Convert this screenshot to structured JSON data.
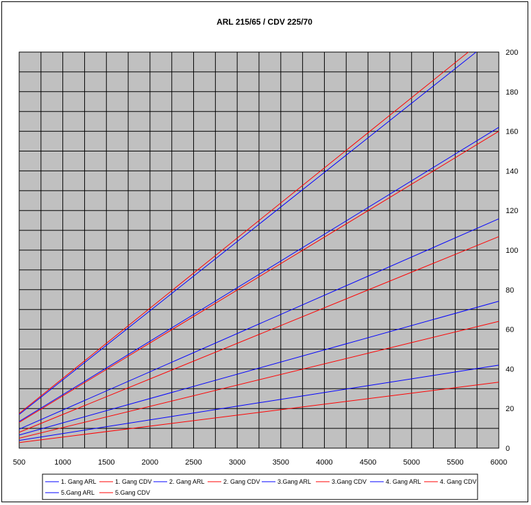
{
  "chart_data": {
    "type": "line",
    "title": "ARL 215/65 / CDV 225/70",
    "xlabel": "",
    "ylabel": "",
    "xlim": [
      500,
      6000
    ],
    "ylim": [
      0,
      200
    ],
    "x_ticks": [
      "500",
      "1000",
      "1500",
      "2000",
      "2500",
      "3000",
      "3500",
      "4000",
      "4500",
      "5000",
      "5500",
      "6000"
    ],
    "y_ticks": [
      "0",
      "20",
      "40",
      "60",
      "80",
      "100",
      "120",
      "140",
      "160",
      "180",
      "200"
    ],
    "y_axis_position": "right",
    "grid": true,
    "x_grid_step": 250,
    "y_grid_step": 10,
    "plot_background": "#c0c0c0",
    "legend_position": "bottom",
    "series": [
      {
        "name": "1. Gang ARL",
        "color": "#0000ff",
        "x": [
          500,
          6000
        ],
        "y": [
          3.9,
          41.9
        ]
      },
      {
        "name": "1. Gang CDV",
        "color": "#ff0000",
        "x": [
          500,
          6000
        ],
        "y": [
          2.8,
          33.3
        ]
      },
      {
        "name": "2. Gang ARL",
        "color": "#0000ff",
        "x": [
          500,
          6000
        ],
        "y": [
          6.6,
          74.2
        ]
      },
      {
        "name": "2. Gang CDV",
        "color": "#ff0000",
        "x": [
          500,
          6000
        ],
        "y": [
          5.0,
          64.0
        ]
      },
      {
        "name": "3.Gang ARL",
        "color": "#0000ff",
        "x": [
          500,
          6000
        ],
        "y": [
          9.6,
          115.8
        ]
      },
      {
        "name": "3.Gang CDV",
        "color": "#ff0000",
        "x": [
          500,
          6000
        ],
        "y": [
          8.0,
          106.8
        ]
      },
      {
        "name": "4. Gang ARL",
        "color": "#0000ff",
        "x": [
          500,
          6000
        ],
        "y": [
          13.5,
          162.0
        ]
      },
      {
        "name": "4. Gang CDV",
        "color": "#ff0000",
        "x": [
          500,
          6000
        ],
        "y": [
          13.0,
          160.0
        ]
      },
      {
        "name": "5.Gang ARL",
        "color": "#0000ff",
        "x": [
          500,
          5740
        ],
        "y": [
          17.0,
          200.0
        ]
      },
      {
        "name": "5.Gang CDV",
        "color": "#ff0000",
        "x": [
          500,
          5650
        ],
        "y": [
          17.5,
          200.0
        ]
      }
    ]
  }
}
